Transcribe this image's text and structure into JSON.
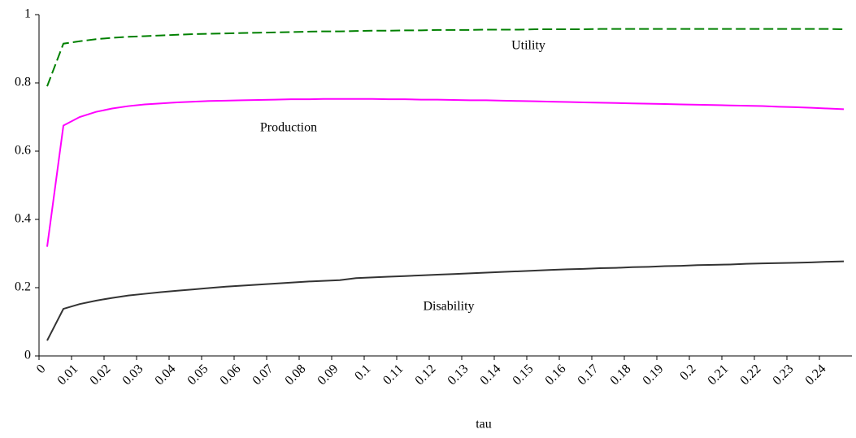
{
  "chart_data": {
    "type": "line",
    "x_label": "tau",
    "x": [
      0.0025,
      0.0075,
      0.0125,
      0.0175,
      0.0225,
      0.0275,
      0.0325,
      0.0375,
      0.0425,
      0.0475,
      0.0525,
      0.0575,
      0.0625,
      0.0675,
      0.0725,
      0.0775,
      0.0825,
      0.0875,
      0.0925,
      0.0975,
      0.1025,
      0.1075,
      0.1125,
      0.1175,
      0.1225,
      0.1275,
      0.1325,
      0.1375,
      0.1425,
      0.1475,
      0.1525,
      0.1575,
      0.1625,
      0.1675,
      0.1725,
      0.1775,
      0.1825,
      0.1875,
      0.1925,
      0.1975,
      0.2025,
      0.2075,
      0.2125,
      0.2175,
      0.2225,
      0.2275,
      0.2325,
      0.2375,
      0.2425,
      0.2475
    ],
    "series": [
      {
        "name": "Utility",
        "color": "#008000",
        "dashed": true,
        "values": [
          0.79,
          0.915,
          0.922,
          0.928,
          0.932,
          0.935,
          0.937,
          0.939,
          0.941,
          0.943,
          0.944,
          0.945,
          0.946,
          0.947,
          0.948,
          0.949,
          0.95,
          0.951,
          0.951,
          0.952,
          0.953,
          0.953,
          0.954,
          0.954,
          0.955,
          0.955,
          0.955,
          0.956,
          0.956,
          0.956,
          0.957,
          0.957,
          0.957,
          0.957,
          0.958,
          0.958,
          0.958,
          0.958,
          0.958,
          0.958,
          0.958,
          0.958,
          0.958,
          0.958,
          0.958,
          0.958,
          0.958,
          0.958,
          0.958,
          0.957
        ]
      },
      {
        "name": "Production",
        "color": "#ff00ff",
        "dashed": false,
        "values": [
          0.32,
          0.675,
          0.7,
          0.715,
          0.725,
          0.732,
          0.737,
          0.74,
          0.743,
          0.745,
          0.747,
          0.748,
          0.749,
          0.75,
          0.751,
          0.752,
          0.752,
          0.753,
          0.753,
          0.753,
          0.753,
          0.752,
          0.752,
          0.751,
          0.751,
          0.75,
          0.749,
          0.749,
          0.748,
          0.747,
          0.746,
          0.745,
          0.744,
          0.743,
          0.742,
          0.741,
          0.74,
          0.739,
          0.738,
          0.737,
          0.736,
          0.735,
          0.734,
          0.733,
          0.732,
          0.73,
          0.729,
          0.727,
          0.725,
          0.723
        ]
      },
      {
        "name": "Disability",
        "color": "#333333",
        "dashed": false,
        "values": [
          0.045,
          0.138,
          0.152,
          0.162,
          0.17,
          0.177,
          0.182,
          0.187,
          0.191,
          0.195,
          0.199,
          0.203,
          0.206,
          0.209,
          0.212,
          0.215,
          0.218,
          0.22,
          0.222,
          0.228,
          0.23,
          0.232,
          0.234,
          0.236,
          0.238,
          0.24,
          0.242,
          0.244,
          0.246,
          0.248,
          0.25,
          0.252,
          0.254,
          0.255,
          0.257,
          0.258,
          0.26,
          0.261,
          0.263,
          0.264,
          0.266,
          0.267,
          0.268,
          0.27,
          0.271,
          0.272,
          0.273,
          0.274,
          0.276,
          0.277
        ]
      }
    ],
    "xlim": [
      0,
      0.25
    ],
    "xticks": [
      0,
      0.01,
      0.02,
      0.03,
      0.04,
      0.05,
      0.06,
      0.07,
      0.08,
      0.09,
      0.1,
      0.11,
      0.12,
      0.13,
      0.14,
      0.15,
      0.16,
      0.17,
      0.18,
      0.19,
      0.2,
      0.21,
      0.22,
      0.23,
      0.24
    ],
    "ylim": [
      0,
      1
    ],
    "yticks": [
      0,
      0.2,
      0.4,
      0.6,
      0.8,
      1
    ],
    "grid": false,
    "legend": false
  }
}
